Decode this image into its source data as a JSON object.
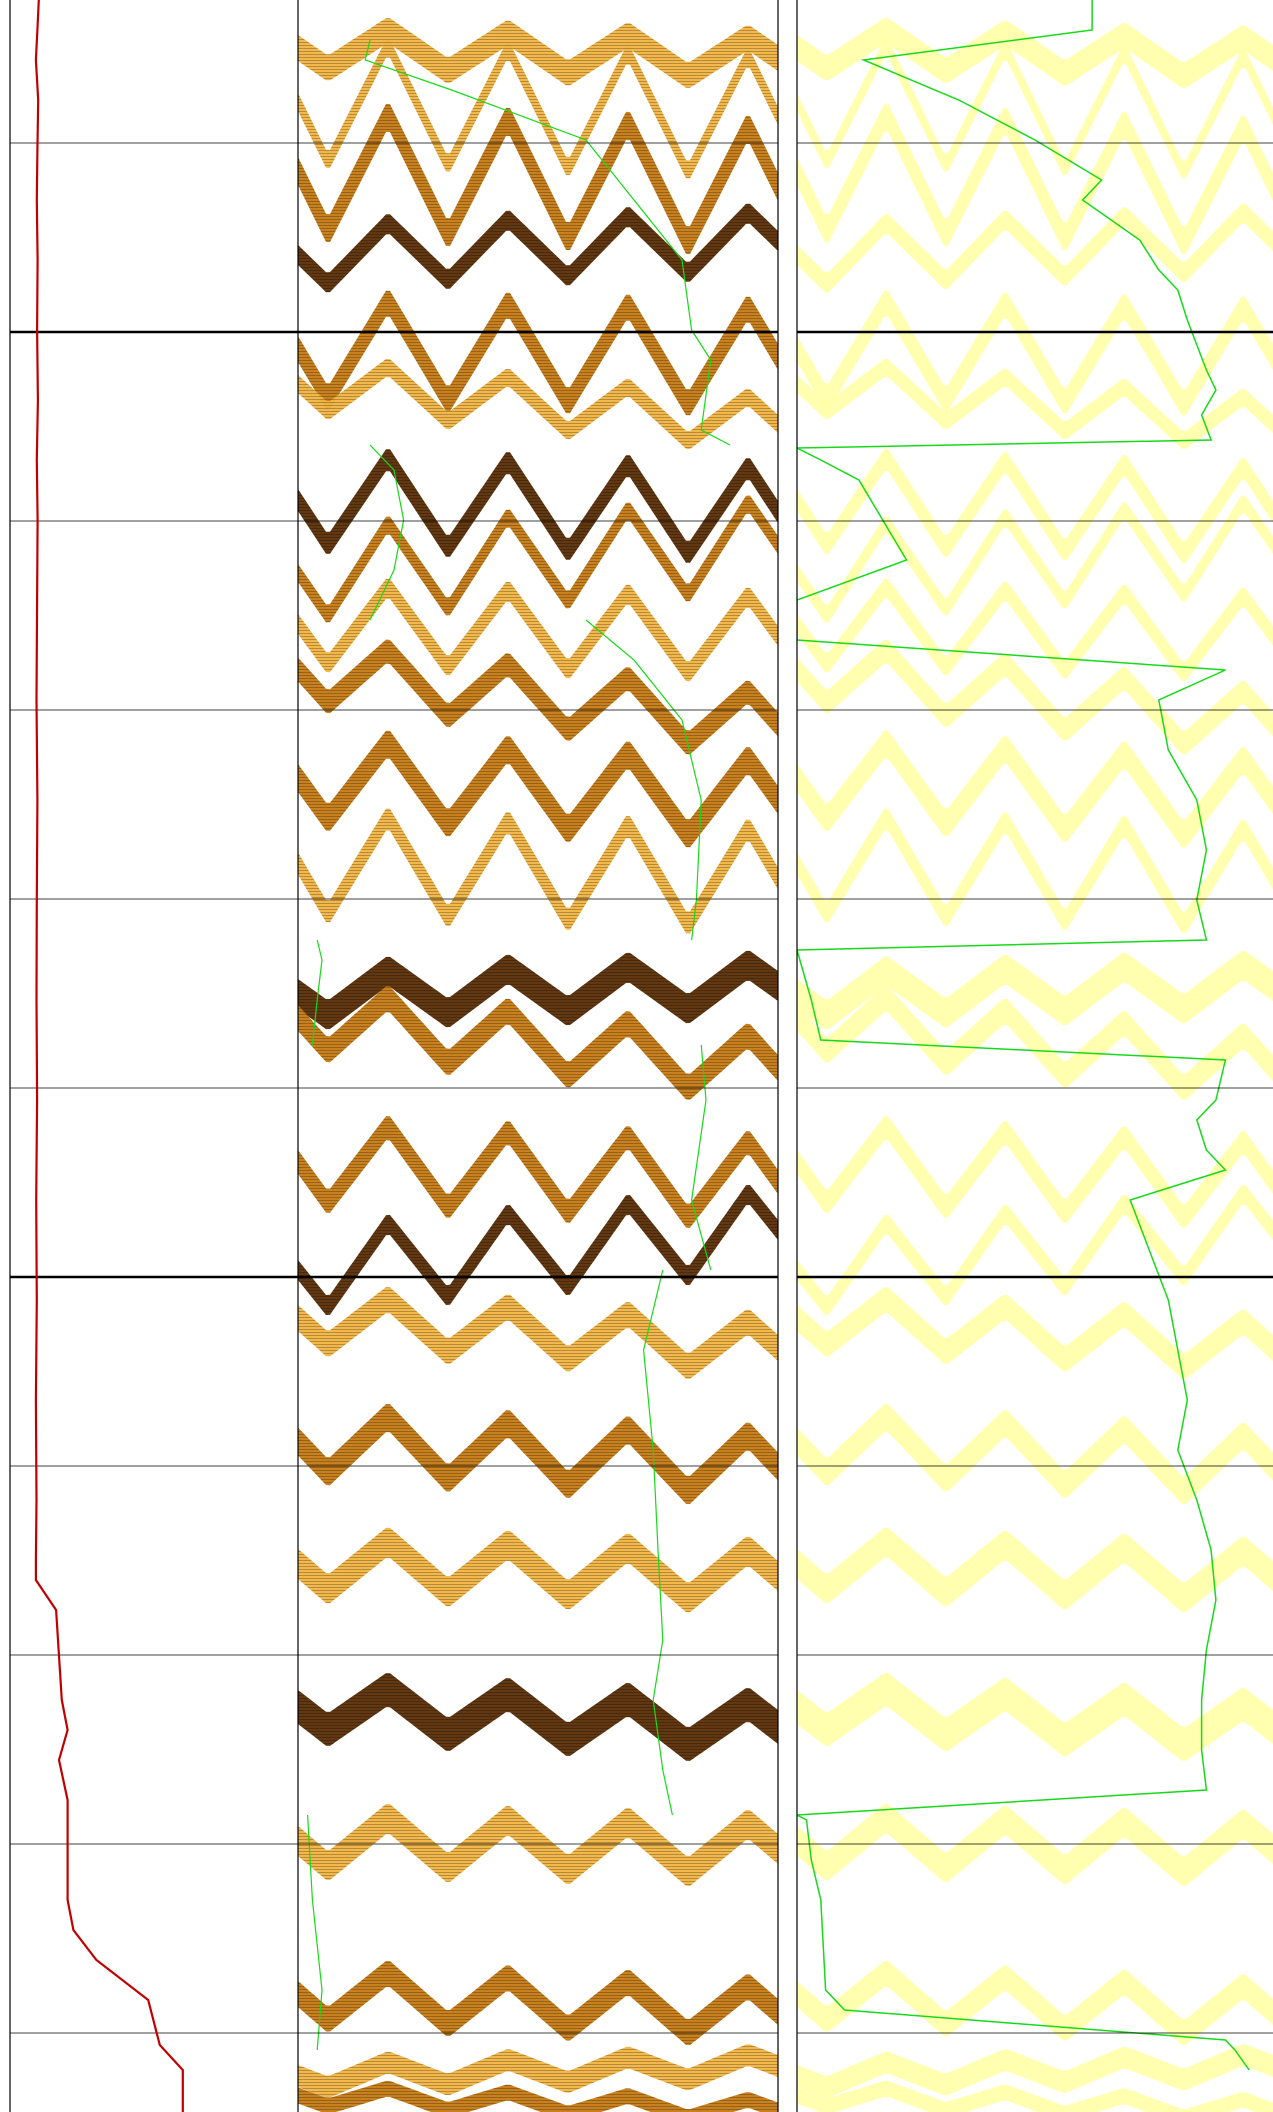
{
  "chart_data": {
    "type": "line",
    "title": "",
    "xlabel": "",
    "ylabel": "",
    "grid": true,
    "depth_range": [
      0,
      2112
    ],
    "colors": {
      "gridline": "#000000",
      "gamma_curve": "#c00000",
      "image_light": "#f2b441",
      "image_mid": "#c67a14",
      "image_dark": "#5a2d05",
      "image_faded": "#ffffa6",
      "pick_line": "#18d918"
    },
    "tracks": [
      {
        "name": "",
        "kind": "curve",
        "x_range": [
          0,
          1
        ],
        "series": [
          {
            "name": "",
            "color": "#c00000",
            "y": [
              0,
              30,
              60,
              100,
              150,
              200,
              260,
              330,
              400,
              460,
              520,
              600,
              700,
              800,
              900,
              1000,
              1100,
              1200,
              1300,
              1400,
              1500,
              1560,
              1580,
              1610,
              1700,
              1730,
              1760,
              1800,
              1900,
              1930,
              1960,
              2000,
              2045,
              2070,
              2112
            ],
            "x": [
              0.1,
              0.095,
              0.09,
              0.098,
              0.095,
              0.093,
              0.096,
              0.094,
              0.097,
              0.093,
              0.096,
              0.094,
              0.092,
              0.095,
              0.093,
              0.092,
              0.094,
              0.091,
              0.093,
              0.09,
              0.092,
              0.09,
              0.09,
              0.16,
              0.18,
              0.2,
              0.17,
              0.2,
              0.2,
              0.22,
              0.3,
              0.48,
              0.52,
              0.6,
              0.6
            ]
          }
        ]
      },
      {
        "name": "",
        "kind": "image",
        "style": "borehole-image",
        "sinusoids": [
          {
            "y": 40,
            "amp": 20,
            "dip": 10,
            "th": 26,
            "shade": "light"
          },
          {
            "y": 100,
            "amp": 60,
            "dip": 14,
            "th": 18,
            "shade": "light"
          },
          {
            "y": 165,
            "amp": 60,
            "dip": 16,
            "th": 28,
            "shade": "mid"
          },
          {
            "y": 238,
            "amp": 30,
            "dip": -14,
            "th": 20,
            "shade": "dark"
          },
          {
            "y": 340,
            "amp": 50,
            "dip": 8,
            "th": 26,
            "shade": "mid"
          },
          {
            "y": 395,
            "amp": 25,
            "dip": 40,
            "th": 18,
            "shade": "light"
          },
          {
            "y": 495,
            "amp": 45,
            "dip": 12,
            "th": 22,
            "shade": "dark"
          },
          {
            "y": 550,
            "amp": 45,
            "dip": -28,
            "th": 18,
            "shade": "mid"
          },
          {
            "y": 620,
            "amp": 40,
            "dip": 12,
            "th": 20,
            "shade": "light"
          },
          {
            "y": 685,
            "amp": 30,
            "dip": 55,
            "th": 24,
            "shade": "mid"
          },
          {
            "y": 775,
            "amp": 40,
            "dip": 22,
            "th": 28,
            "shade": "mid"
          },
          {
            "y": 860,
            "amp": 50,
            "dip": 15,
            "th": 22,
            "shade": "light"
          },
          {
            "y": 975,
            "amp": 22,
            "dip": -8,
            "th": 30,
            "shade": "dark"
          },
          {
            "y": 1030,
            "amp": 30,
            "dip": 50,
            "th": 26,
            "shade": "mid"
          },
          {
            "y": 1160,
            "amp": 40,
            "dip": 20,
            "th": 24,
            "shade": "mid"
          },
          {
            "y": 1240,
            "amp": 40,
            "dip": -40,
            "th": 20,
            "shade": "dark"
          },
          {
            "y": 1320,
            "amp": 25,
            "dip": 30,
            "th": 26,
            "shade": "light"
          },
          {
            "y": 1440,
            "amp": 30,
            "dip": 25,
            "th": 28,
            "shade": "mid"
          },
          {
            "y": 1555,
            "amp": 25,
            "dip": 12,
            "th": 30,
            "shade": "light"
          },
          {
            "y": 1700,
            "amp": 22,
            "dip": 20,
            "th": 34,
            "shade": "dark"
          },
          {
            "y": 1830,
            "amp": 25,
            "dip": 8,
            "th": 30,
            "shade": "light"
          },
          {
            "y": 1990,
            "amp": 25,
            "dip": 18,
            "th": 26,
            "shade": "mid"
          },
          {
            "y": 2060,
            "amp": 12,
            "dip": -10,
            "th": 22,
            "shade": "light"
          },
          {
            "y": 2095,
            "amp": 10,
            "dip": 15,
            "th": 16,
            "shade": "mid"
          }
        ],
        "pick_lines": [
          {
            "y": [
              40,
              60,
              90,
              140,
              200,
              260,
              330,
              360,
              430,
              445
            ],
            "x": [
              0.15,
              0.14,
              0.32,
              0.6,
              0.7,
              0.8,
              0.82,
              0.86,
              0.84,
              0.9
            ]
          },
          {
            "y": [
              445,
              470,
              520,
              570,
              620
            ],
            "x": [
              0.15,
              0.2,
              0.22,
              0.2,
              0.15
            ]
          },
          {
            "y": [
              620,
              660,
              720,
              800,
              900,
              940
            ],
            "x": [
              0.6,
              0.7,
              0.8,
              0.84,
              0.83,
              0.82
            ]
          },
          {
            "y": [
              940,
              960,
              1000,
              1045
            ],
            "x": [
              0.04,
              0.05,
              0.04,
              0.03
            ]
          },
          {
            "y": [
              1045,
              1100,
              1200,
              1270
            ],
            "x": [
              0.84,
              0.85,
              0.82,
              0.86
            ]
          },
          {
            "y": [
              1270,
              1350,
              1450,
              1550,
              1640,
              1700,
              1770,
              1815
            ],
            "x": [
              0.76,
              0.72,
              0.74,
              0.75,
              0.76,
              0.74,
              0.76,
              0.78
            ]
          },
          {
            "y": [
              1815,
              1900,
              1990,
              2050
            ],
            "x": [
              0.02,
              0.03,
              0.05,
              0.04
            ]
          }
        ]
      },
      {
        "name": "",
        "kind": "image",
        "style": "faded-image",
        "curve": {
          "y": [
            0,
            30,
            60,
            100,
            140,
            180,
            200,
            240,
            270,
            290,
            320,
            370,
            390,
            415,
            440,
            448,
            460,
            480,
            520,
            560,
            600,
            640,
            670,
            700,
            750,
            800,
            850,
            900,
            940,
            950,
            1000,
            1040,
            1060,
            1100,
            1120,
            1150,
            1170,
            1200,
            1250,
            1300,
            1350,
            1400,
            1450,
            1500,
            1550,
            1600,
            1650,
            1700,
            1750,
            1790,
            1815,
            1820,
            1860,
            1900,
            1990,
            2010,
            2040,
            2050,
            2070
          ],
          "x": [
            0.62,
            0.62,
            0.14,
            0.34,
            0.5,
            0.64,
            0.6,
            0.72,
            0.76,
            0.8,
            0.82,
            0.86,
            0.88,
            0.85,
            0.87,
            0.0,
            0.05,
            0.13,
            0.18,
            0.23,
            0.0,
            0.0,
            0.9,
            0.76,
            0.78,
            0.84,
            0.86,
            0.84,
            0.86,
            0.0,
            0.03,
            0.05,
            0.9,
            0.88,
            0.84,
            0.86,
            0.9,
            0.7,
            0.74,
            0.78,
            0.8,
            0.82,
            0.8,
            0.84,
            0.87,
            0.88,
            0.86,
            0.85,
            0.85,
            0.86,
            0.0,
            0.02,
            0.03,
            0.05,
            0.06,
            0.1,
            0.9,
            0.92,
            0.95
          ]
        }
      }
    ]
  }
}
